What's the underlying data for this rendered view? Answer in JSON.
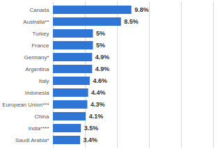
{
  "chart_data": {
    "type": "bar",
    "orientation": "horizontal",
    "categories": [
      "Canada",
      "Australia**",
      "Turkey",
      "France",
      "Germany*",
      "Argentina",
      "Italy",
      "Indonesia",
      "European Union***",
      "China",
      "India****",
      "Saudi Arabia*"
    ],
    "values": [
      9.8,
      8.5,
      5,
      5,
      4.9,
      4.9,
      4.6,
      4.4,
      4.3,
      4.1,
      3.5,
      3.4
    ],
    "value_labels": [
      "9.8%",
      "8.5%",
      "5%",
      "5%",
      "4.9%",
      "4.9%",
      "4.6%",
      "4.4%",
      "4.3%",
      "4.1%",
      "3.5%",
      "3.4%"
    ],
    "color": "#2f75d6",
    "xlim": [
      0,
      20
    ],
    "xticks": [
      0,
      4,
      8,
      12,
      16,
      20
    ],
    "grid": true,
    "data_labels": true,
    "tick_labels": "y"
  }
}
